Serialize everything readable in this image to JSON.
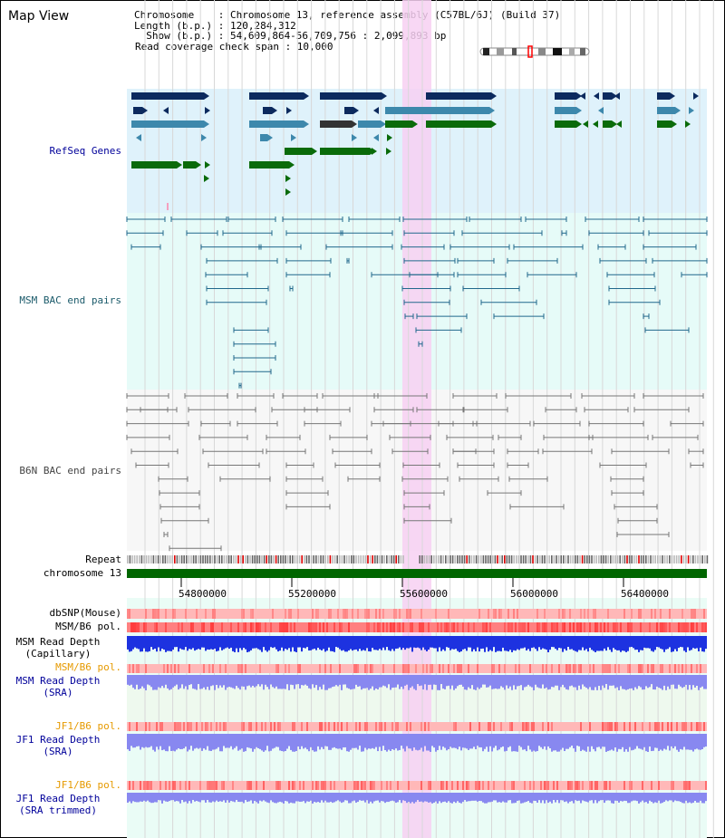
{
  "view": {
    "title": "Map View",
    "chromosome_line": "Chromosome    : Chromosome 13, reference assembly (C57BL/6J) (Build 37)",
    "length_line": "Length (b.p.) : 120,284,312",
    "show_line": "  Show (b.p.) : 54,609,864-56,709,756 : 2,099,893 bp",
    "coverage_line": "Read coverage check span : 10,000"
  },
  "tracks": {
    "refseq": "RefSeq Genes",
    "msm_bac": "MSM BAC end pairs",
    "b6n_bac": "B6N BAC end pairs",
    "repeat": "Repeat",
    "chromosome": "chromosome 13",
    "dbsnp": "dbSNP(Mouse)",
    "msm_b6_pol": "MSM/B6 pol.",
    "msm_depth_cap_1": "MSM Read Depth",
    "msm_depth_cap_2": "(Capillary)",
    "msm_b6_pol2": "MSM/B6 pol.",
    "msm_depth_sra_1": "MSM Read Depth",
    "msm_depth_sra_2": "(SRA)",
    "jf1_b6_pol": "JF1/B6 pol.",
    "jf1_depth_sra_1": "JF1 Read Depth",
    "jf1_depth_sra_2": "(SRA)",
    "jf1_b6_pol2": "JF1/B6 pol.",
    "jf1_depth_trim_1": "JF1 Read Depth",
    "jf1_depth_trim_2": "(SRA trimmed)"
  },
  "axis": {
    "ticks": [
      "54800000",
      "55200000",
      "55600000",
      "56000000",
      "56400000"
    ]
  },
  "colors": {
    "refseq_bg": "#dff2fb",
    "msm_bg": "#e6fbf8",
    "b6n_bg": "#f7f7f7",
    "highlight": "#f7d0f2",
    "gene_dark": "#0c2a5e",
    "gene_mid": "#3d88ac",
    "gene_green": "#0a6b0a",
    "msm_line": "#21688c",
    "b6n_line": "#777777",
    "chrom": "#006600",
    "snp_light": "#ffb8b8",
    "snp_red": "#ff3030",
    "depth_blue": "#1d32e0",
    "depth_lav": "#8888f0",
    "label_black": "#000000",
    "label_navy": "#00009a",
    "label_orange": "#e69a00",
    "label_teal": "#1a5a6a"
  }
}
